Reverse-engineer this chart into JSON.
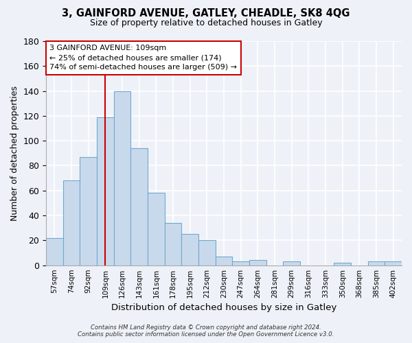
{
  "title1": "3, GAINFORD AVENUE, GATLEY, CHEADLE, SK8 4QG",
  "title2": "Size of property relative to detached houses in Gatley",
  "xlabel": "Distribution of detached houses by size in Gatley",
  "ylabel": "Number of detached properties",
  "bar_labels": [
    "57sqm",
    "74sqm",
    "92sqm",
    "109sqm",
    "126sqm",
    "143sqm",
    "161sqm",
    "178sqm",
    "195sqm",
    "212sqm",
    "230sqm",
    "247sqm",
    "264sqm",
    "281sqm",
    "299sqm",
    "316sqm",
    "333sqm",
    "350sqm",
    "368sqm",
    "385sqm",
    "402sqm"
  ],
  "bar_values": [
    22,
    68,
    87,
    119,
    140,
    94,
    58,
    34,
    25,
    20,
    7,
    3,
    4,
    0,
    3,
    0,
    0,
    2,
    0,
    3,
    3
  ],
  "bar_color": "#c9d9ec",
  "bar_edge_color": "#6fa8cc",
  "vline_index": 3,
  "vline_color": "#cc0000",
  "annotation_title": "3 GAINFORD AVENUE: 109sqm",
  "annotation_line1": "← 25% of detached houses are smaller (174)",
  "annotation_line2": "74% of semi-detached houses are larger (509) →",
  "annotation_box_color": "#ffffff",
  "annotation_box_edge": "#cc0000",
  "footer1": "Contains HM Land Registry data © Crown copyright and database right 2024.",
  "footer2": "Contains public sector information licensed under the Open Government Licence v3.0.",
  "ylim": [
    0,
    180
  ],
  "yticks": [
    0,
    20,
    40,
    60,
    80,
    100,
    120,
    140,
    160,
    180
  ],
  "background_color": "#eef2f8"
}
